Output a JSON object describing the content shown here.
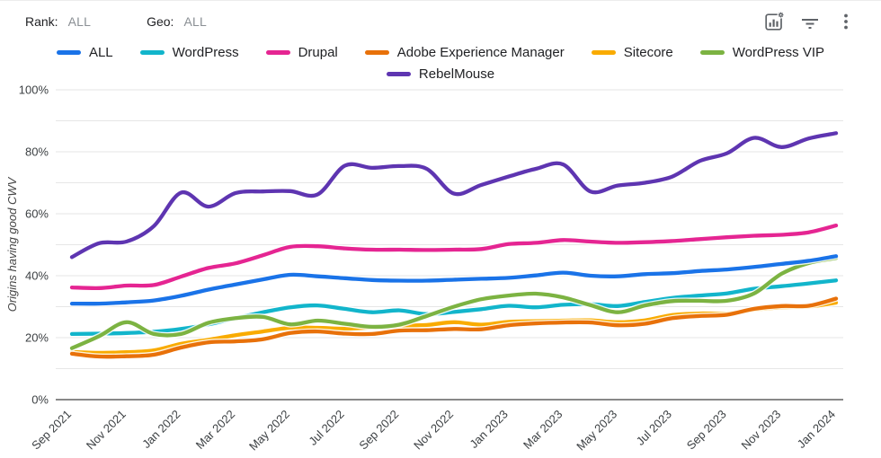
{
  "toolbar": {
    "rank_label": "Rank:",
    "rank_value": "ALL",
    "geo_label": "Geo:",
    "geo_value": "ALL",
    "icons": [
      {
        "name": "chart-settings-icon"
      },
      {
        "name": "filter-icon"
      },
      {
        "name": "kebab-menu-icon"
      }
    ],
    "icon_color": "#5f6368"
  },
  "chart_data": {
    "type": "line",
    "title": "",
    "ylabel": "Origins having good CWV",
    "xlabel": "",
    "ylim": [
      0,
      100
    ],
    "y_major_ticks": [
      0,
      20,
      40,
      60,
      80,
      100
    ],
    "y_minor_step": 10,
    "y_tick_format": "percent",
    "grid": true,
    "legend_position": "top",
    "x": [
      "Sep 2021",
      "Oct 2021",
      "Nov 2021",
      "Dec 2021",
      "Jan 2022",
      "Feb 2022",
      "Mar 2022",
      "Apr 2022",
      "May 2022",
      "Jun 2022",
      "Jul 2022",
      "Aug 2022",
      "Sep 2022",
      "Oct 2022",
      "Nov 2022",
      "Dec 2022",
      "Jan 2023",
      "Feb 2023",
      "Mar 2023",
      "Apr 2023",
      "May 2023",
      "Jun 2023",
      "Jul 2023",
      "Aug 2023",
      "Sep 2023",
      "Oct 2023",
      "Nov 2023",
      "Dec 2023",
      "Jan 2024"
    ],
    "x_tick_every": 2,
    "x_tick_labels": [
      "Sep 2021",
      "Nov 2021",
      "Jan 2022",
      "Mar 2022",
      "May 2022",
      "Jul 2022",
      "Sep 2022",
      "Nov 2022",
      "Jan 2023",
      "Mar 2023",
      "May 2023",
      "Jul 2023",
      "Sep 2023",
      "Nov 2023",
      "Jan 2024"
    ],
    "series": [
      {
        "name": "ALL",
        "color": "#1a73e8",
        "values": [
          31,
          31,
          31.4,
          32,
          33.5,
          35.5,
          37.2,
          38.8,
          40.3,
          39.8,
          39.2,
          38.6,
          38.4,
          38.4,
          38.7,
          39,
          39.3,
          40.1,
          41,
          40,
          39.8,
          40.5,
          40.8,
          41.5,
          42,
          42.8,
          43.8,
          44.8,
          46.3
        ]
      },
      {
        "name": "WordPress",
        "color": "#12b5cb",
        "values": [
          21.2,
          21.3,
          21.5,
          21.9,
          22.8,
          24.3,
          26.3,
          28.2,
          29.8,
          30.4,
          29.3,
          28.2,
          28.8,
          27.6,
          28.3,
          29.2,
          30.3,
          29.8,
          30.6,
          30.8,
          30.2,
          31.5,
          32.8,
          33.6,
          34.3,
          35.8,
          36.6,
          37.5,
          38.5
        ]
      },
      {
        "name": "Drupal",
        "color": "#e52592",
        "values": [
          36.2,
          36,
          36.8,
          37,
          39.7,
          42.5,
          44,
          46.6,
          49.3,
          49.5,
          48.8,
          48.4,
          48.4,
          48.3,
          48.4,
          48.6,
          50.2,
          50.6,
          51.5,
          51,
          50.6,
          50.8,
          51.2,
          51.8,
          52.4,
          52.9,
          53.2,
          54,
          56.2
        ]
      },
      {
        "name": "Adobe Experience Manager",
        "color": "#e8710a",
        "values": [
          14.8,
          13.9,
          14,
          14.5,
          16.8,
          18.5,
          18.8,
          19.5,
          21.5,
          22,
          21.3,
          21.2,
          22.3,
          22.4,
          22.8,
          22.7,
          24,
          24.6,
          24.9,
          24.9,
          24,
          24.5,
          26.3,
          27,
          27.4,
          29.3,
          30.2,
          30.3,
          32.6
        ]
      },
      {
        "name": "Sitecore",
        "color": "#f9ab00",
        "values": [
          15.4,
          15.1,
          15.3,
          15.9,
          18,
          19.3,
          20.8,
          22,
          23.2,
          23.2,
          22.9,
          23.3,
          23.8,
          24.1,
          25,
          24.2,
          25.1,
          25.3,
          25.5,
          25.6,
          25,
          25.6,
          27.3,
          27.8,
          27.8,
          29,
          29.8,
          30,
          31.3
        ]
      },
      {
        "name": "WordPress VIP",
        "color": "#7cb342",
        "values": [
          16.6,
          20.5,
          25,
          21.2,
          21.2,
          24.8,
          26.3,
          26.7,
          24.3,
          25.5,
          24.5,
          23.5,
          24.2,
          27,
          30,
          32.4,
          33.6,
          34.2,
          33,
          30.5,
          28.2,
          30.4,
          31.8,
          31.9,
          31.9,
          34.3,
          40.6,
          44.1,
          45.7
        ]
      },
      {
        "name": "RebelMouse",
        "color": "#5e35b1",
        "values": [
          46,
          50.5,
          51,
          56,
          66.8,
          62.3,
          66.7,
          67.2,
          67.3,
          66.2,
          75.5,
          74.8,
          75.4,
          74.5,
          66.5,
          69.3,
          72,
          74.5,
          75.9,
          67.2,
          69.1,
          70,
          72,
          77,
          79.5,
          84.5,
          81.5,
          84.3,
          86
        ]
      }
    ],
    "draw_order": [
      "RebelMouse",
      "Drupal",
      "Sitecore",
      "Adobe Experience Manager",
      "WordPress",
      "WordPress VIP",
      "ALL"
    ],
    "gridline_color": "#e6e6e6",
    "baseline_color": "#616161",
    "tick_label_color": "#3c4043",
    "axis_title_color": "#444444"
  }
}
